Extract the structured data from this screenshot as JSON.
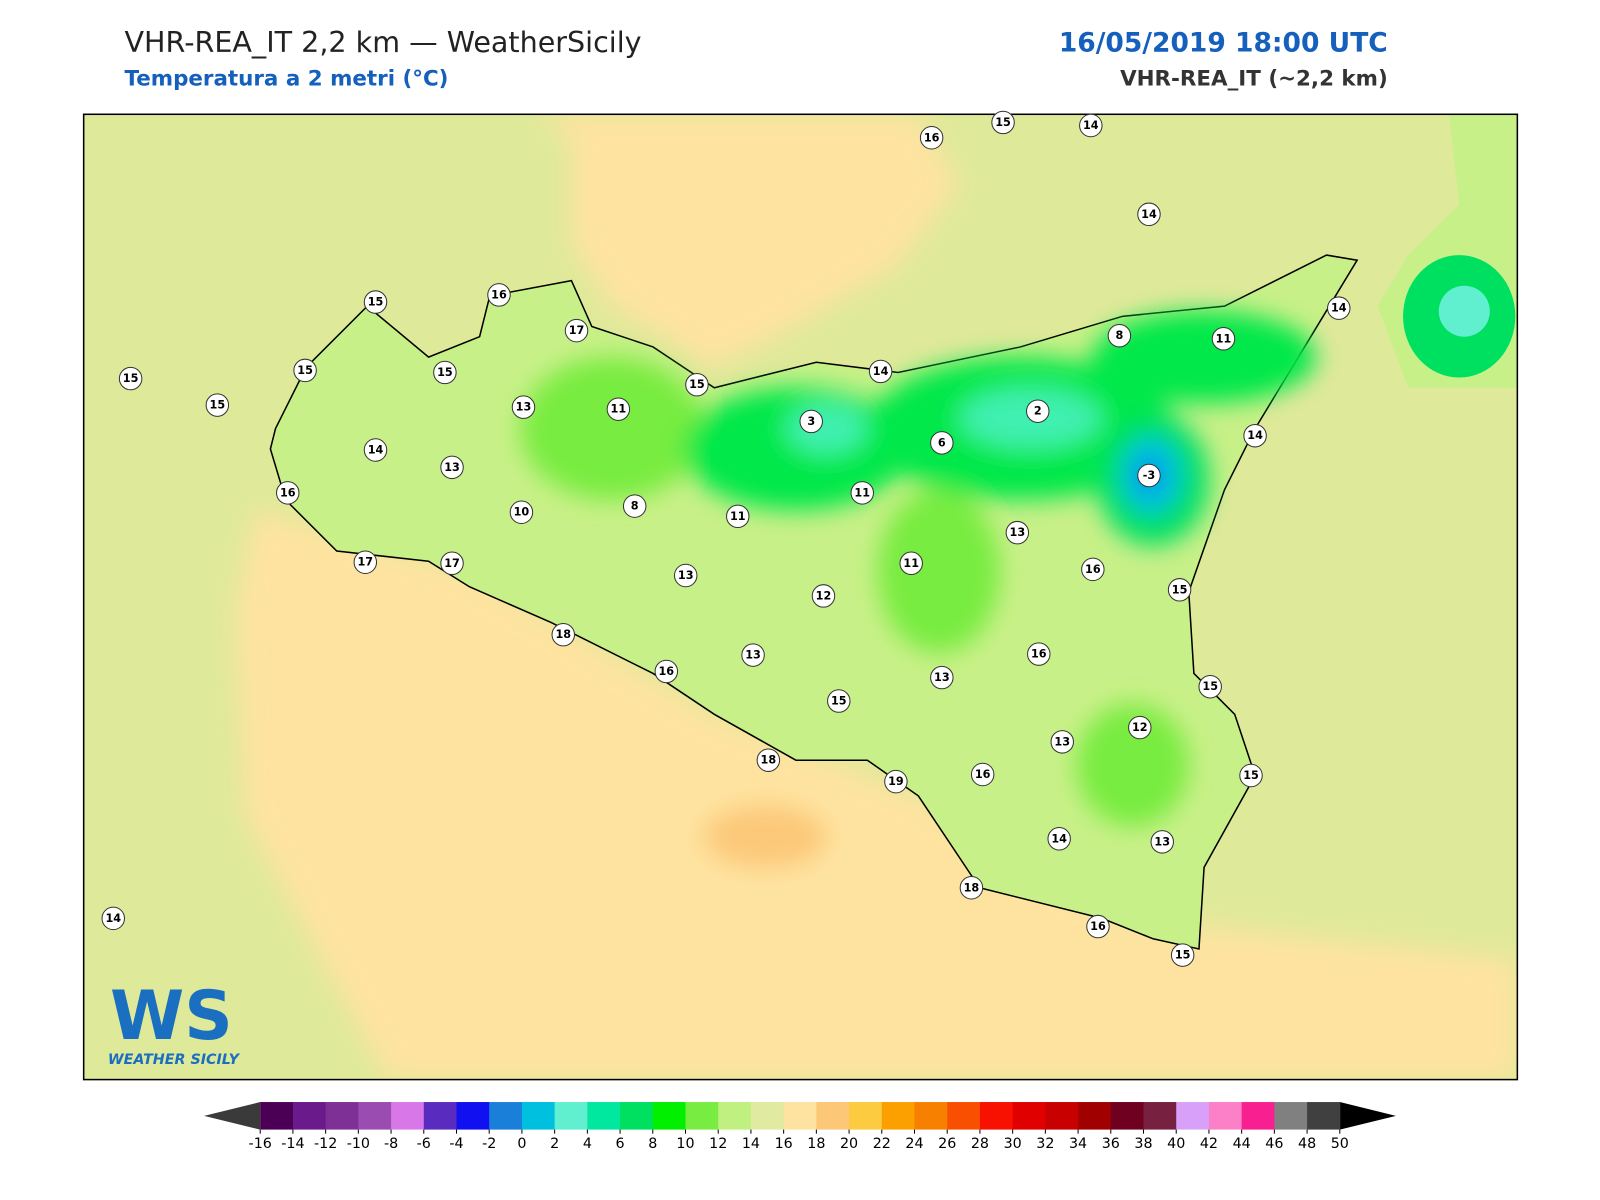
{
  "header": {
    "title": "VHR-REA_IT 2,2 km — WeatherSicily",
    "subtitle": "Temperatura a 2 metri (°C)",
    "date": "16/05/2019 18:00 UTC",
    "model": "VHR-REA_IT (~2,2 km)"
  },
  "stations": {
    "values": [
      16,
      15,
      14,
      14,
      15,
      16,
      17,
      15,
      15,
      15,
      15,
      13,
      11,
      15,
      14,
      8,
      11,
      14,
      3,
      2,
      6,
      14,
      -3,
      14,
      13,
      16,
      10,
      8,
      11,
      11,
      13,
      17,
      17,
      13,
      11,
      16,
      15,
      12,
      18,
      13,
      16,
      16,
      13,
      15,
      15,
      12,
      13,
      18,
      19,
      16,
      15,
      14,
      13,
      18,
      16,
      15,
      14
    ]
  },
  "colorbar": {
    "ticks": [
      -16,
      -14,
      -12,
      -10,
      -8,
      -6,
      -4,
      -2,
      0,
      2,
      4,
      6,
      8,
      10,
      12,
      14,
      16,
      18,
      20,
      22,
      24,
      26,
      28,
      30,
      32,
      34,
      36,
      38,
      40,
      42,
      44,
      46,
      48,
      50
    ],
    "colors": [
      "#4b0055",
      "#6a1a8a",
      "#7e3096",
      "#9b4cb0",
      "#d878e8",
      "#5a2bbf",
      "#1010f0",
      "#1a7fd8",
      "#00c0e0",
      "#60f0d0",
      "#00e8a0",
      "#00e060",
      "#00f000",
      "#78ec40",
      "#c0f080",
      "#e0eaa0",
      "#fee3a0",
      "#fcc878",
      "#fccb40",
      "#fca000",
      "#f88000",
      "#f85000",
      "#f81000",
      "#e00000",
      "#c80000",
      "#a00000",
      "#700020",
      "#782040",
      "#d8a0f8",
      "#fc80c8",
      "#f82090",
      "#808080",
      "#404040"
    ],
    "under_color": "#3a3a3a",
    "over_color": "#000000"
  },
  "logo": {
    "mark": "WS",
    "name": "WEATHER SICILY"
  }
}
